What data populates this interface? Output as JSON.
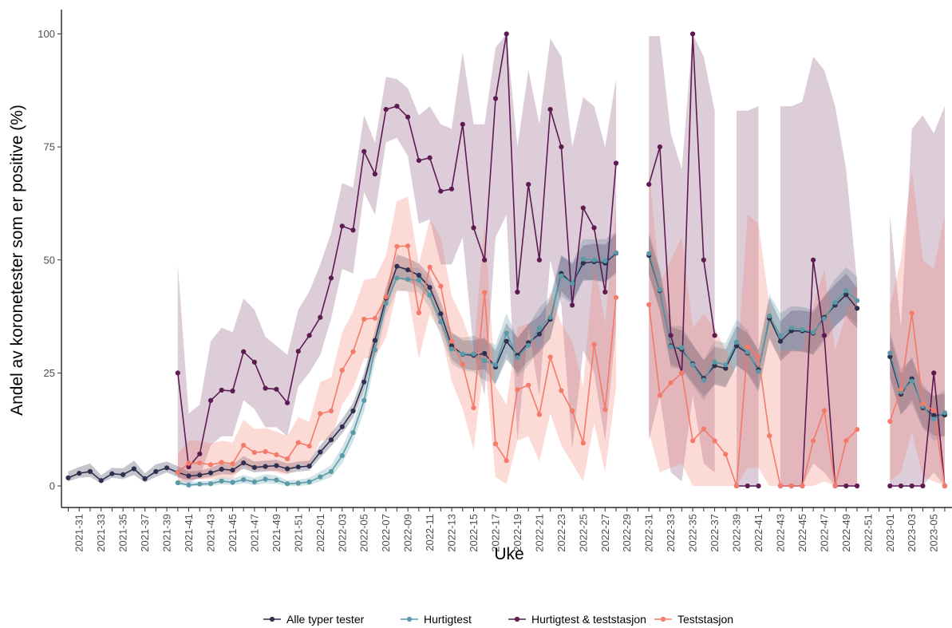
{
  "chart_data": {
    "type": "line",
    "xlabel": "Uke",
    "ylabel": "Andel av koronetester som er positive (%)",
    "ylim": [
      0,
      100
    ],
    "y_ticks": [
      0,
      25,
      50,
      75,
      100
    ],
    "grid": false,
    "legend_position": "bottom",
    "x_tick_labels": [
      "2021-31",
      "2021-33",
      "2021-35",
      "2021-37",
      "2021-39",
      "2021-41",
      "2021-43",
      "2021-45",
      "2021-47",
      "2021-49",
      "2021-51",
      "2022-01",
      "2022-03",
      "2022-05",
      "2022-07",
      "2022-09",
      "2022-11",
      "2022-13",
      "2022-15",
      "2022-17",
      "2022-19",
      "2022-21",
      "2022-23",
      "2022-25",
      "2022-27",
      "2022-29",
      "2022-31",
      "2022-33",
      "2022-35",
      "2022-37",
      "2022-39",
      "2022-41",
      "2022-43",
      "2022-45",
      "2022-47",
      "2022-49",
      "2022-51",
      "2023-01",
      "2023-03",
      "2023-05"
    ],
    "x": [
      "2021-30",
      "2021-31",
      "2021-32",
      "2021-33",
      "2021-34",
      "2021-35",
      "2021-36",
      "2021-37",
      "2021-38",
      "2021-39",
      "2021-40",
      "2021-41",
      "2021-42",
      "2021-43",
      "2021-44",
      "2021-45",
      "2021-46",
      "2021-47",
      "2021-48",
      "2021-49",
      "2021-50",
      "2021-51",
      "2021-52",
      "2022-01",
      "2022-02",
      "2022-03",
      "2022-04",
      "2022-05",
      "2022-06",
      "2022-07",
      "2022-08",
      "2022-09",
      "2022-10",
      "2022-11",
      "2022-12",
      "2022-13",
      "2022-14",
      "2022-15",
      "2022-16",
      "2022-17",
      "2022-18",
      "2022-19",
      "2022-20",
      "2022-21",
      "2022-22",
      "2022-23",
      "2022-24",
      "2022-25",
      "2022-26",
      "2022-27",
      "2022-28",
      "2022-29",
      "2022-30",
      "2022-31",
      "2022-32",
      "2022-33",
      "2022-34",
      "2022-35",
      "2022-36",
      "2022-37",
      "2022-38",
      "2022-39",
      "2022-40",
      "2022-41",
      "2022-42",
      "2022-43",
      "2022-44",
      "2022-45",
      "2022-46",
      "2022-47",
      "2022-48",
      "2022-49",
      "2022-50",
      "2022-51",
      "2022-52",
      "2023-01",
      "2023-02",
      "2023-03",
      "2023-04",
      "2023-05",
      "2023-06"
    ],
    "series": [
      {
        "name": "Alle typer tester",
        "color": "#2f2f4f",
        "values": [
          1.8,
          2.8,
          3.2,
          1.2,
          2.7,
          2.5,
          3.8,
          1.6,
          3.2,
          4.0,
          3.0,
          2.2,
          2.4,
          2.9,
          3.7,
          3.5,
          5.1,
          4.1,
          4.3,
          4.5,
          3.8,
          4.2,
          4.4,
          7.5,
          10.2,
          13.1,
          16.6,
          23.0,
          32.2,
          41.6,
          48.6,
          47.8,
          46.6,
          43.9,
          38.1,
          31.0,
          29.1,
          28.9,
          29.3,
          26.3,
          32.0,
          28.9,
          31.7,
          33.6,
          36.9,
          47.0,
          44.8,
          49.3,
          49.6,
          49.3,
          51.5,
          null,
          null,
          51.0,
          43.2,
          31.0,
          30.2,
          27.0,
          23.8,
          26.6,
          26.0,
          31.0,
          29.4,
          25.7,
          37.1,
          32.0,
          34.3,
          34.3,
          33.8,
          37.3,
          40.0,
          42.3,
          39.3,
          null,
          null,
          28.6,
          20.3,
          23.7,
          17.3,
          15.6,
          15.7
        ],
        "ci_lower": [
          1.0,
          1.8,
          2.0,
          0.6,
          1.8,
          1.5,
          2.4,
          0.8,
          2.0,
          3.0,
          2.0,
          1.4,
          1.6,
          2.0,
          2.6,
          2.5,
          3.8,
          3.0,
          3.2,
          3.4,
          2.8,
          3.2,
          3.4,
          6.2,
          8.8,
          11.6,
          15.0,
          21.2,
          30.0,
          39.2,
          46.0,
          45.2,
          44.0,
          41.2,
          35.4,
          28.0,
          26.0,
          25.6,
          25.8,
          22.6,
          28.0,
          25.0,
          27.6,
          29.6,
          32.6,
          43.0,
          40.6,
          45.4,
          45.6,
          45.2,
          47.2,
          null,
          null,
          46.6,
          39.0,
          26.8,
          26.0,
          22.8,
          19.8,
          22.4,
          21.8,
          26.6,
          25.0,
          21.4,
          32.6,
          27.6,
          29.8,
          29.8,
          29.2,
          32.6,
          35.4,
          37.6,
          34.8,
          null,
          null,
          23.8,
          15.8,
          19.0,
          13.0,
          11.2,
          11.0
        ],
        "ci_upper": [
          3.2,
          4.2,
          5.0,
          2.4,
          4.0,
          3.9,
          5.6,
          2.8,
          4.8,
          5.4,
          4.4,
          3.2,
          3.4,
          4.0,
          5.0,
          4.7,
          6.6,
          5.4,
          5.6,
          5.8,
          5.0,
          5.4,
          5.6,
          9.0,
          11.8,
          14.8,
          18.4,
          25.0,
          34.4,
          44.0,
          51.2,
          50.4,
          49.2,
          46.6,
          40.8,
          34.0,
          32.2,
          32.2,
          32.8,
          30.0,
          36.0,
          32.8,
          35.8,
          37.6,
          41.2,
          51.0,
          49.0,
          53.2,
          53.6,
          53.4,
          55.8,
          null,
          null,
          55.4,
          47.4,
          35.2,
          34.4,
          31.2,
          27.8,
          30.8,
          30.2,
          35.4,
          33.8,
          30.0,
          41.6,
          36.4,
          38.8,
          38.8,
          38.4,
          42.0,
          44.6,
          47.0,
          43.8,
          null,
          null,
          33.4,
          24.8,
          28.4,
          21.6,
          20.0,
          20.4
        ]
      },
      {
        "name": "Hurtigtest",
        "color": "#5a9aa8",
        "values": [
          null,
          null,
          null,
          null,
          null,
          null,
          null,
          null,
          null,
          null,
          0.7,
          0.2,
          0.4,
          0.5,
          1.1,
          0.8,
          1.4,
          0.9,
          1.5,
          1.3,
          0.5,
          0.6,
          0.9,
          2.0,
          3.2,
          6.7,
          11.8,
          18.9,
          30.1,
          40.4,
          46.0,
          45.7,
          45.5,
          42.2,
          36.3,
          30.3,
          29.2,
          29.2,
          27.7,
          26.8,
          33.8,
          28.4,
          31.1,
          34.9,
          37.3,
          46.5,
          44.8,
          50.2,
          50.0,
          49.8,
          51.6,
          null,
          null,
          51.4,
          43.4,
          30.8,
          30.6,
          26.8,
          23.4,
          27.4,
          26.8,
          31.8,
          29.6,
          25.3,
          37.6,
          33.2,
          35.0,
          34.6,
          34.0,
          37.0,
          40.6,
          43.2,
          41.0,
          null,
          null,
          29.4,
          20.8,
          23.2,
          17.6,
          14.8,
          16.2
        ],
        "ci_lower": [
          null,
          null,
          null,
          null,
          null,
          null,
          null,
          null,
          null,
          null,
          0.2,
          0.0,
          0.0,
          0.0,
          0.4,
          0.2,
          0.6,
          0.2,
          0.6,
          0.5,
          0.0,
          0.0,
          0.2,
          1.0,
          2.0,
          5.0,
          9.8,
          16.4,
          27.4,
          37.8,
          43.4,
          43.0,
          42.8,
          39.4,
          33.2,
          27.0,
          25.6,
          25.2,
          23.4,
          22.6,
          29.4,
          24.2,
          26.6,
          30.4,
          32.6,
          42.0,
          40.2,
          45.8,
          45.4,
          45.0,
          47.0,
          null,
          null,
          46.6,
          38.6,
          26.2,
          25.8,
          22.2,
          19.0,
          22.6,
          22.0,
          26.8,
          24.8,
          20.6,
          32.8,
          28.2,
          30.2,
          29.6,
          29.0,
          32.0,
          35.4,
          38.0,
          35.8,
          null,
          null,
          24.4,
          15.8,
          18.2,
          12.8,
          10.0,
          11.2
        ],
        "ci_upper": [
          null,
          null,
          null,
          null,
          null,
          null,
          null,
          null,
          null,
          null,
          1.4,
          0.8,
          1.0,
          1.2,
          2.0,
          1.6,
          2.4,
          1.8,
          2.6,
          2.3,
          1.2,
          1.4,
          1.8,
          3.2,
          4.6,
          8.6,
          14.0,
          21.6,
          32.8,
          43.0,
          48.6,
          48.4,
          48.2,
          45.0,
          39.4,
          33.6,
          32.8,
          33.2,
          32.2,
          31.2,
          38.2,
          32.6,
          35.6,
          39.4,
          42.0,
          51.0,
          49.4,
          54.6,
          54.6,
          54.6,
          56.2,
          null,
          null,
          56.2,
          48.2,
          35.4,
          35.4,
          31.4,
          27.8,
          32.2,
          31.6,
          36.8,
          34.4,
          30.0,
          42.4,
          38.2,
          39.8,
          39.6,
          39.0,
          42.0,
          45.8,
          48.4,
          46.2,
          null,
          null,
          34.4,
          25.8,
          28.2,
          22.4,
          19.6,
          21.2
        ]
      },
      {
        "name": "Hurtigtest & teststasjon",
        "color": "#5e1a52",
        "values": [
          null,
          null,
          null,
          null,
          null,
          null,
          null,
          null,
          null,
          null,
          25.0,
          4.2,
          7.1,
          18.9,
          21.2,
          21.0,
          29.7,
          27.4,
          21.6,
          21.4,
          18.4,
          29.8,
          33.3,
          37.3,
          46.0,
          57.5,
          56.6,
          74.0,
          69.0,
          83.3,
          84.0,
          81.6,
          72.0,
          72.6,
          65.2,
          65.7,
          80.0,
          57.1,
          50.0,
          85.7,
          100.0,
          42.9,
          66.7,
          50.0,
          83.3,
          75.0,
          40.0,
          61.5,
          57.1,
          42.9,
          71.4,
          null,
          null,
          66.7,
          75.0,
          33.3,
          25.0,
          100.0,
          50.0,
          33.3,
          null,
          0.0,
          0.0,
          0.0,
          null,
          0.0,
          0.0,
          0.0,
          50.0,
          33.3,
          0.0,
          0.0,
          0.0,
          null,
          null,
          0.0,
          0.0,
          0.0,
          0.0,
          25.0,
          0.0
        ],
        "ci_lower": [
          null,
          null,
          null,
          null,
          null,
          null,
          null,
          null,
          null,
          null,
          2.0,
          0.5,
          2.0,
          9.0,
          11.0,
          11.0,
          19.0,
          17.0,
          13.0,
          13.0,
          11.0,
          22.0,
          25.0,
          29.0,
          37.0,
          48.0,
          47.0,
          65.0,
          60.0,
          76.0,
          77.0,
          73.0,
          58.0,
          59.0,
          49.0,
          49.0,
          55.0,
          30.0,
          20.0,
          55.0,
          60.0,
          10.0,
          35.0,
          20.0,
          50.0,
          40.0,
          8.0,
          30.0,
          25.0,
          10.0,
          35.0,
          null,
          null,
          10.0,
          20.0,
          3.0,
          1.0,
          20.0,
          5.0,
          3.0,
          null,
          0.0,
          0.0,
          0.0,
          null,
          0.0,
          0.0,
          0.0,
          5.0,
          3.0,
          0.0,
          0.0,
          0.0,
          null,
          null,
          0.0,
          0.0,
          0.0,
          0.0,
          3.0,
          0.0
        ],
        "ci_upper": [
          null,
          null,
          null,
          null,
          null,
          null,
          null,
          null,
          null,
          null,
          49.0,
          16.0,
          18.0,
          32.0,
          35.0,
          34.0,
          41.5,
          39.0,
          33.0,
          31.0,
          29.0,
          39.0,
          43.0,
          49.0,
          56.0,
          67.0,
          66.0,
          82.0,
          76.0,
          90.5,
          90.0,
          88.0,
          82.0,
          84.0,
          80.0,
          79.0,
          96.0,
          80.0,
          80.0,
          97.0,
          100.0,
          75.0,
          92.0,
          80.0,
          99.0,
          95.0,
          75.0,
          86.0,
          84.0,
          75.0,
          90.0,
          null,
          null,
          99.5,
          99.5,
          78.0,
          70.0,
          100.0,
          95.0,
          83.0,
          null,
          83.0,
          83.0,
          84.0,
          null,
          84.0,
          84.0,
          85.0,
          95.0,
          92.0,
          84.0,
          70.0,
          45.0,
          null,
          null,
          60.0,
          35.0,
          79.0,
          82.0,
          78.0,
          84.0
        ]
      },
      {
        "name": "Teststasjon",
        "color": "#f47a6a",
        "values": [
          null,
          null,
          null,
          null,
          null,
          null,
          null,
          null,
          null,
          null,
          3.0,
          5.0,
          5.1,
          4.7,
          5.2,
          4.9,
          9.0,
          7.4,
          7.6,
          6.9,
          6.0,
          9.6,
          8.8,
          16.0,
          16.6,
          25.6,
          29.7,
          36.9,
          37.1,
          41.8,
          53.0,
          53.1,
          38.3,
          48.4,
          44.2,
          32.0,
          26.9,
          17.3,
          42.8,
          9.3,
          5.6,
          21.3,
          22.3,
          15.8,
          28.5,
          21.1,
          16.6,
          9.5,
          31.3,
          16.9,
          41.7,
          null,
          null,
          40.1,
          20.0,
          22.8,
          25.0,
          10.0,
          12.6,
          10.0,
          7.0,
          0.0,
          30.8,
          28.6,
          11.1,
          0.0,
          0.0,
          0.0,
          10.0,
          16.7,
          0.0,
          10.0,
          12.5,
          null,
          null,
          14.3,
          21.4,
          38.2,
          18.2,
          16.7,
          0.0
        ],
        "ci_lower": [
          null,
          null,
          null,
          null,
          null,
          null,
          null,
          null,
          null,
          null,
          0.5,
          1.5,
          1.5,
          1.5,
          1.8,
          1.6,
          4.5,
          3.4,
          3.6,
          3.0,
          2.4,
          5.0,
          4.4,
          10.0,
          10.4,
          18.0,
          21.6,
          28.2,
          28.4,
          32.8,
          43.0,
          43.2,
          28.2,
          38.0,
          34.0,
          23.2,
          17.0,
          8.0,
          28.0,
          2.0,
          0.4,
          10.0,
          11.0,
          5.4,
          16.0,
          9.0,
          5.0,
          1.0,
          14.0,
          3.0,
          22.0,
          null,
          null,
          12.0,
          3.0,
          4.0,
          5.0,
          0.0,
          0.0,
          0.0,
          0.0,
          0.0,
          4.0,
          4.0,
          0.0,
          0.0,
          0.0,
          0.0,
          0.0,
          1.0,
          0.0,
          0.0,
          0.0,
          null,
          null,
          1.0,
          3.0,
          12.0,
          2.0,
          1.0,
          0.0
        ],
        "ci_upper": [
          null,
          null,
          null,
          null,
          null,
          null,
          null,
          null,
          null,
          null,
          7.0,
          10.0,
          10.0,
          9.4,
          10.0,
          9.6,
          14.6,
          12.6,
          12.8,
          12.0,
          11.0,
          15.2,
          14.2,
          23.0,
          24.0,
          34.0,
          38.6,
          45.6,
          46.0,
          51.0,
          63.0,
          64.0,
          49.0,
          59.0,
          55.0,
          42.0,
          37.0,
          30.0,
          58.0,
          22.0,
          18.0,
          35.0,
          36.0,
          30.0,
          43.0,
          36.0,
          32.0,
          22.0,
          50.0,
          36.0,
          62.0,
          null,
          null,
          70.0,
          45.0,
          50.0,
          55.0,
          35.0,
          38.0,
          35.0,
          30.0,
          25.0,
          60.0,
          58.0,
          40.0,
          30.0,
          30.0,
          30.0,
          40.0,
          48.0,
          30.0,
          38.0,
          45.0,
          null,
          null,
          40.0,
          50.0,
          70.0,
          50.0,
          48.0,
          60.0
        ]
      }
    ]
  }
}
